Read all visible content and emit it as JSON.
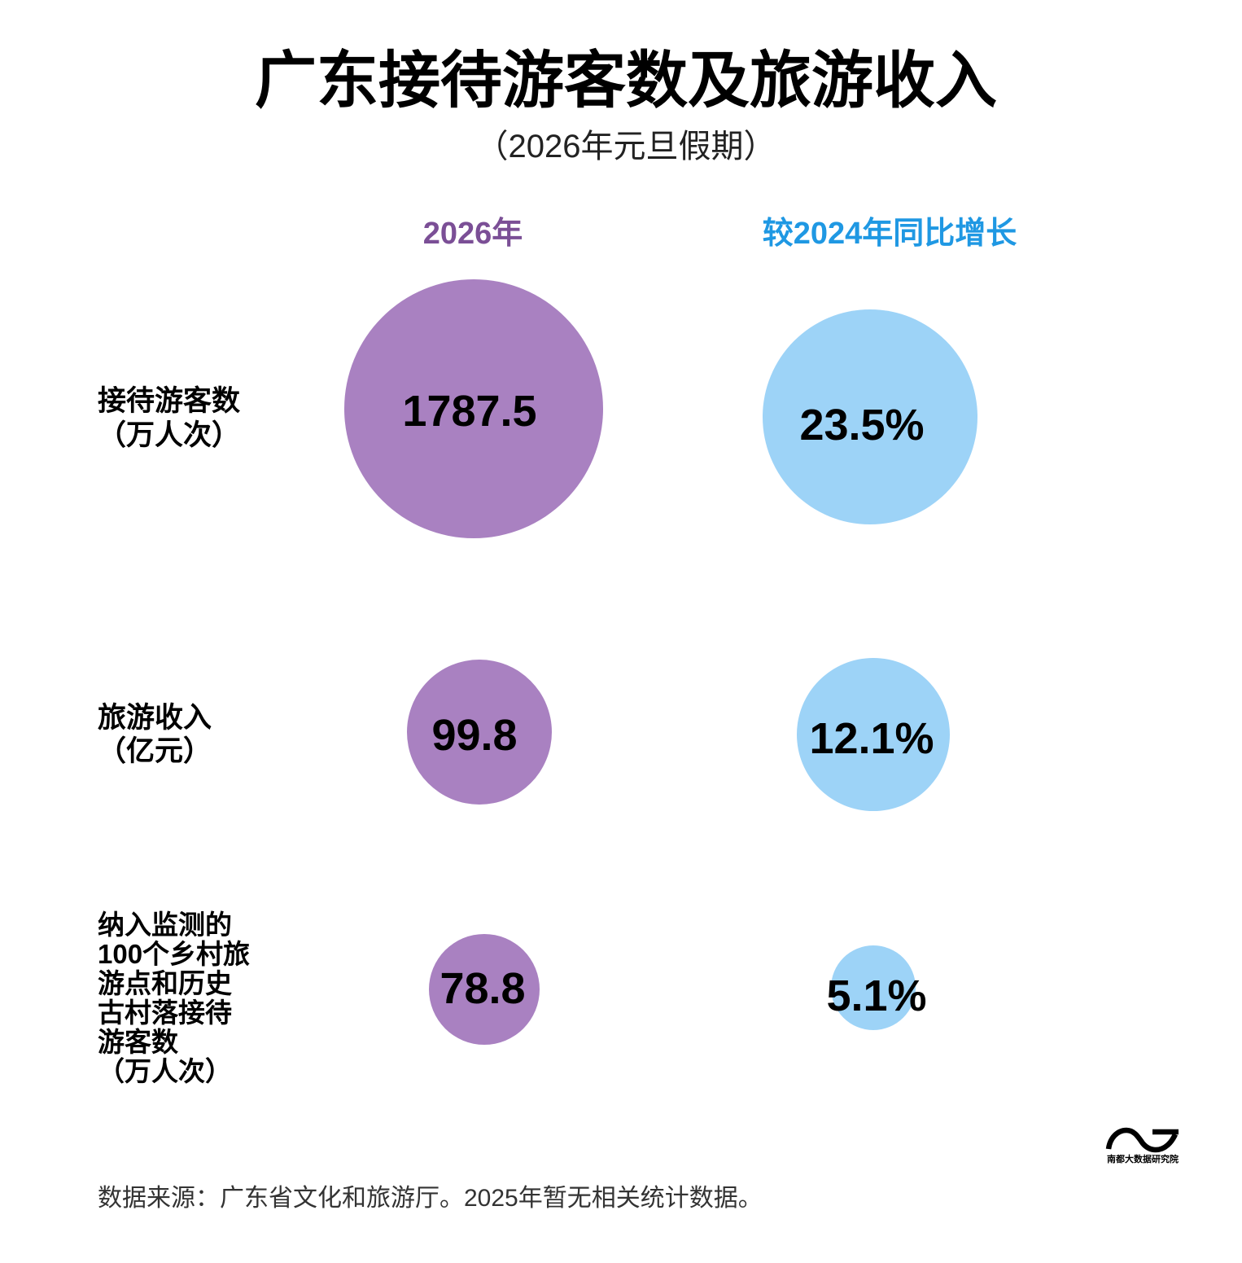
{
  "colors": {
    "purple_fill": "#a981c1",
    "blue_fill": "#9dd3f7",
    "purple_text": "#7b4f96",
    "blue_text": "#1f98e3",
    "source_text": "#333333"
  },
  "chart_data": {
    "type": "table",
    "title": "广东接待游客数及旅游收入",
    "subtitle": "（2026年元旦假期）",
    "categories": [
      [
        "接待游客数",
        "（万人次）"
      ],
      [
        "旅游收入",
        "（亿元）"
      ],
      [
        "纳入监测的",
        "100个乡村旅",
        "游点和历史",
        "古村落接待",
        "游客数",
        "（万人次）"
      ]
    ],
    "series": [
      {
        "name": "2026年",
        "values": [
          1787.5,
          99.8,
          78.8
        ],
        "labels": [
          "1787.5",
          "99.8",
          "78.8"
        ]
      },
      {
        "name": "较2024年同比增长",
        "values": [
          23.5,
          12.1,
          5.1
        ],
        "labels": [
          "23.5%",
          "12.1%",
          "5.1%"
        ]
      }
    ]
  },
  "source": "数据来源：广东省文化和旅游厅。2025年暂无相关统计数据。",
  "logo": {
    "icon": "nandu-wave-logo",
    "text": "南都大数据研究院"
  }
}
